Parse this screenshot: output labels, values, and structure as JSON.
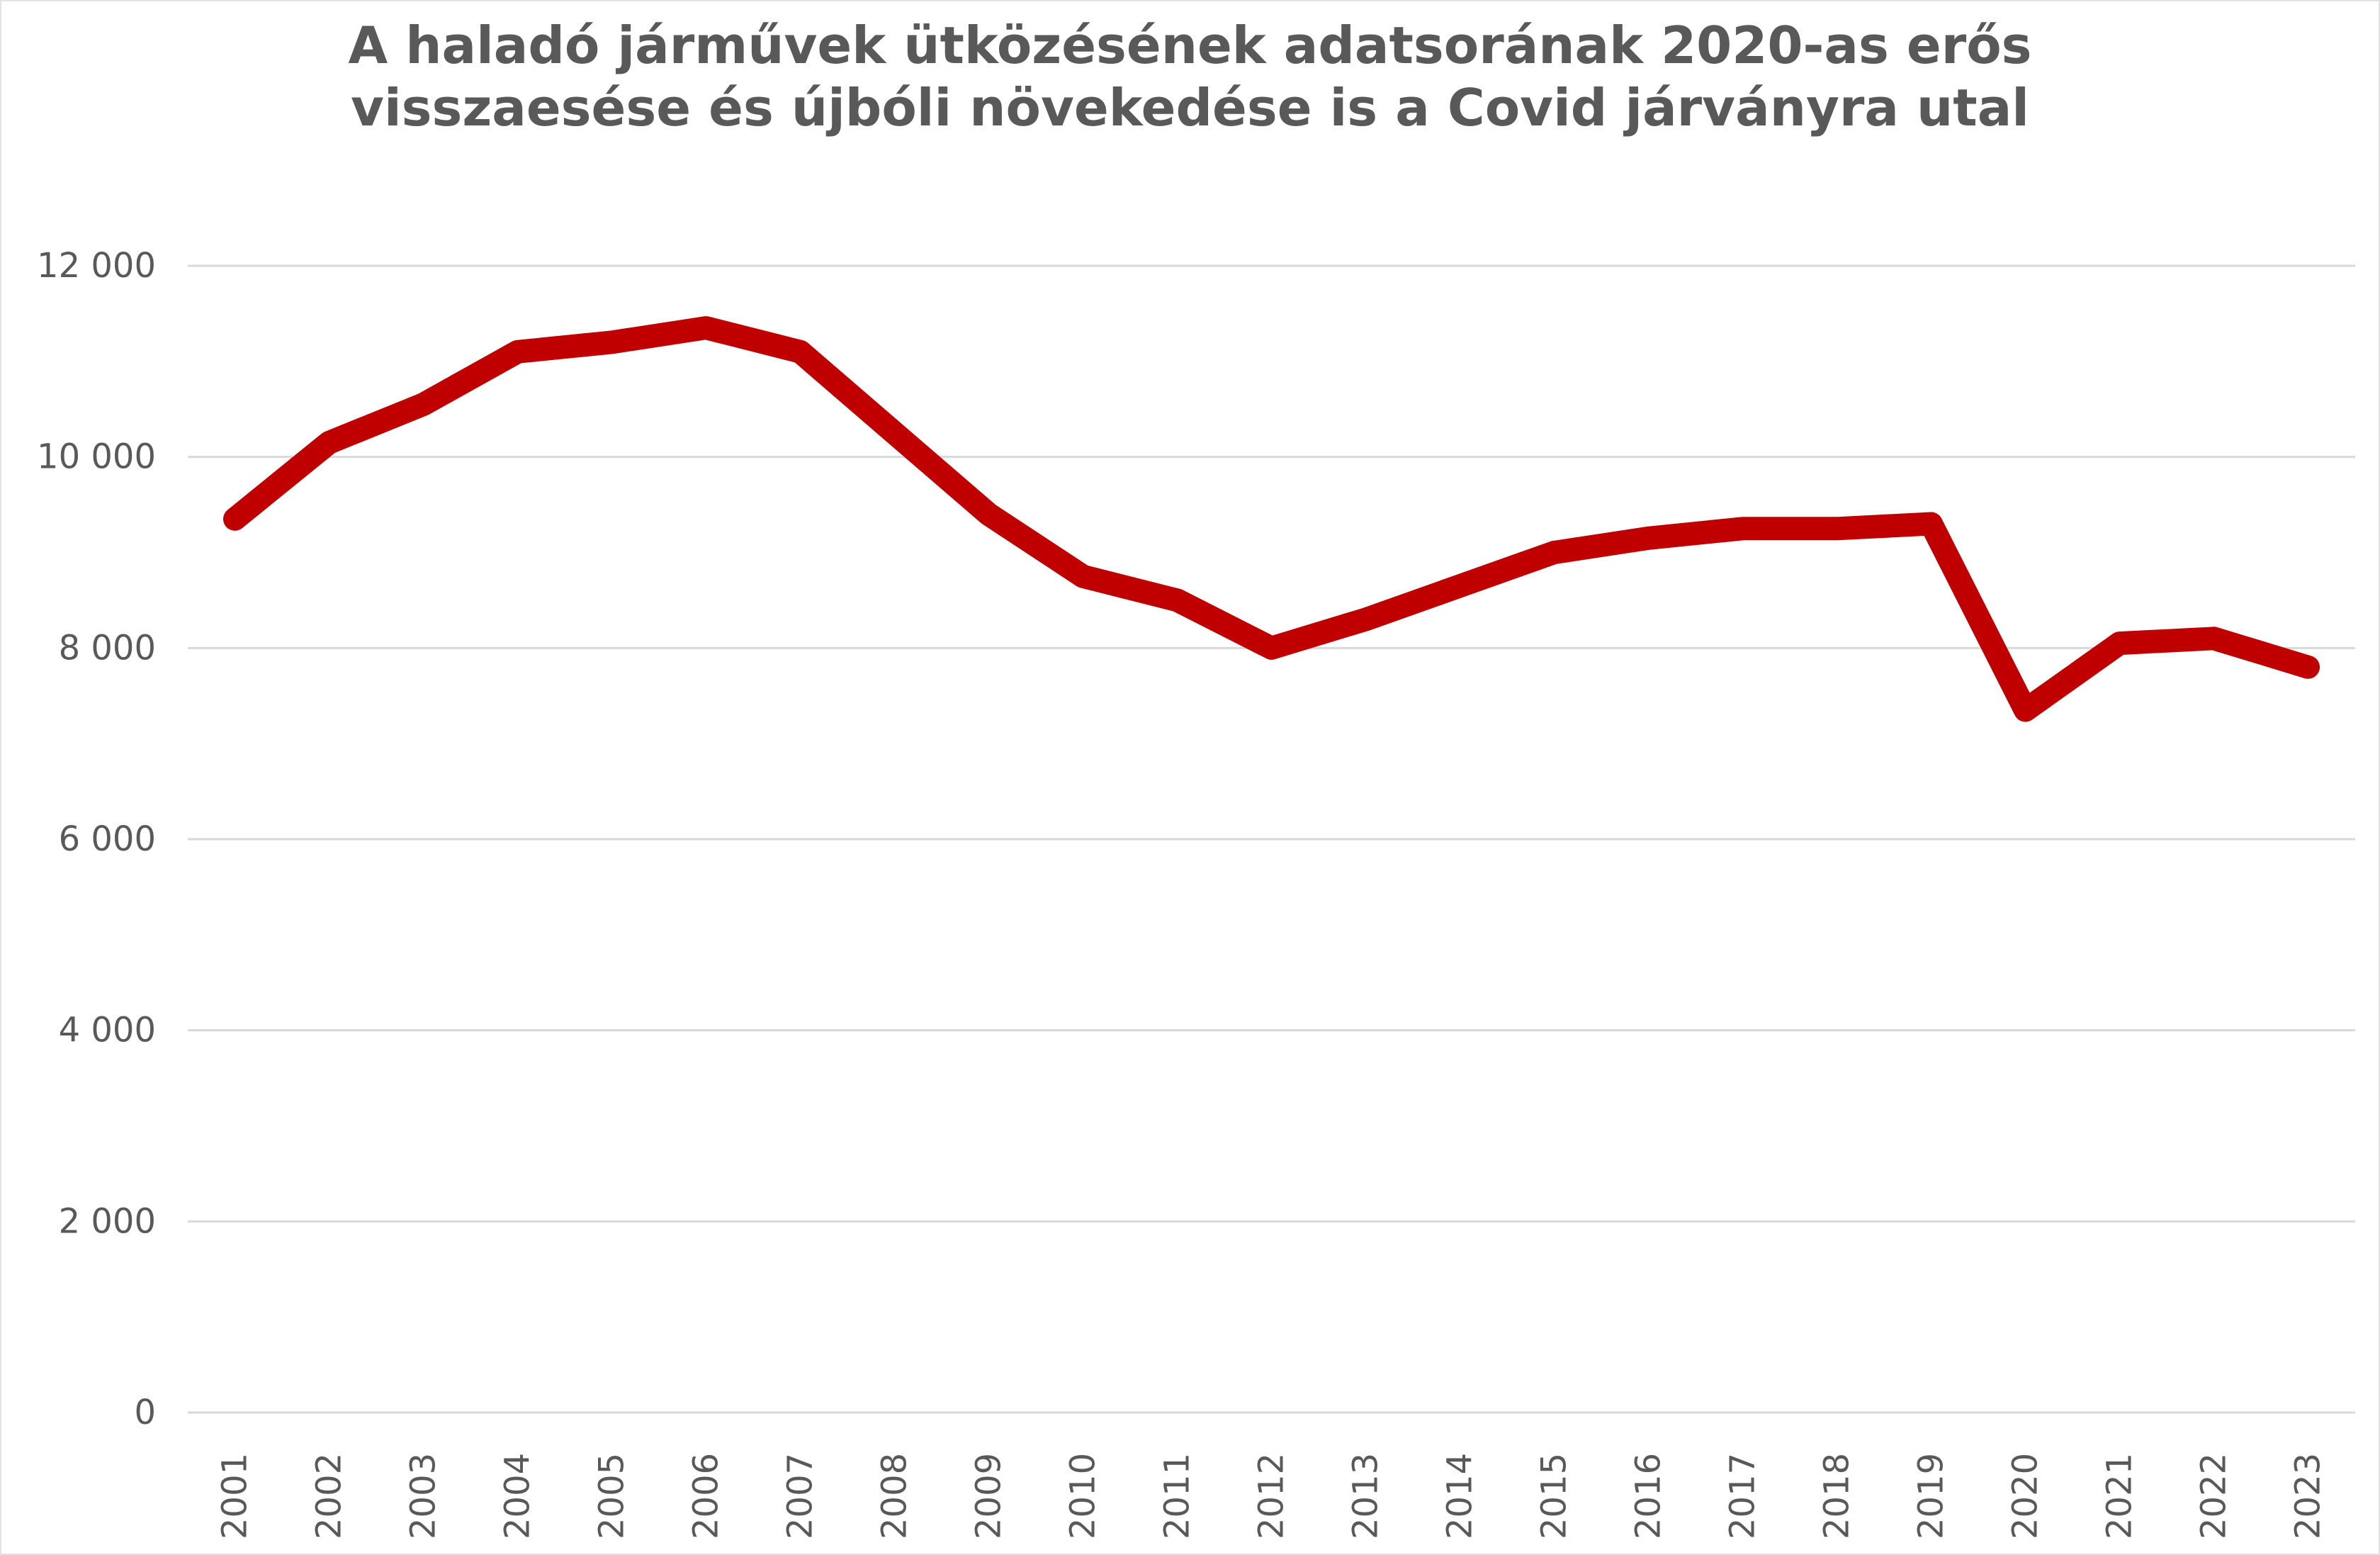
{
  "chart_data": {
    "type": "line",
    "title": "A haladó járművek ütközésének adatsorának 2020-as erős visszaesése és újbóli növekedése is a Covid járványra utal",
    "title_lines": [
      "A haladó járművek ütközésének adatsorának 2020-as erős",
      "visszaesése és újbóli növekedése is a Covid járványra utal"
    ],
    "categories": [
      "2001",
      "2002",
      "2003",
      "2004",
      "2005",
      "2006",
      "2007",
      "2008",
      "2009",
      "2010",
      "2011",
      "2012",
      "2013",
      "2014",
      "2015",
      "2016",
      "2017",
      "2018",
      "2019",
      "2020",
      "2021",
      "2022",
      "2023"
    ],
    "values": [
      9350,
      10150,
      10550,
      11100,
      11200,
      11350,
      11100,
      10250,
      9400,
      8750,
      8500,
      8000,
      8300,
      8650,
      9000,
      9150,
      9250,
      9250,
      9300,
      7350,
      8050,
      8100,
      7800
    ],
    "xlabel": "",
    "ylabel": "",
    "ylim": [
      0,
      12000
    ],
    "y_ticks": {
      "values": [
        12000,
        10000,
        8000,
        6000,
        4000,
        2000,
        0
      ],
      "labels": [
        "12 000",
        "10 000",
        "8 000",
        "6 000",
        "4 000",
        "2 000",
        "0"
      ]
    },
    "grid": "horizontal",
    "legend": "none",
    "x_tick_rotation_degrees": 90,
    "colors": {
      "line": "#C00000",
      "title_text": "#595959",
      "axis_text": "#595959",
      "gridline": "#D9D9D9",
      "background": "#FFFFFF"
    }
  }
}
